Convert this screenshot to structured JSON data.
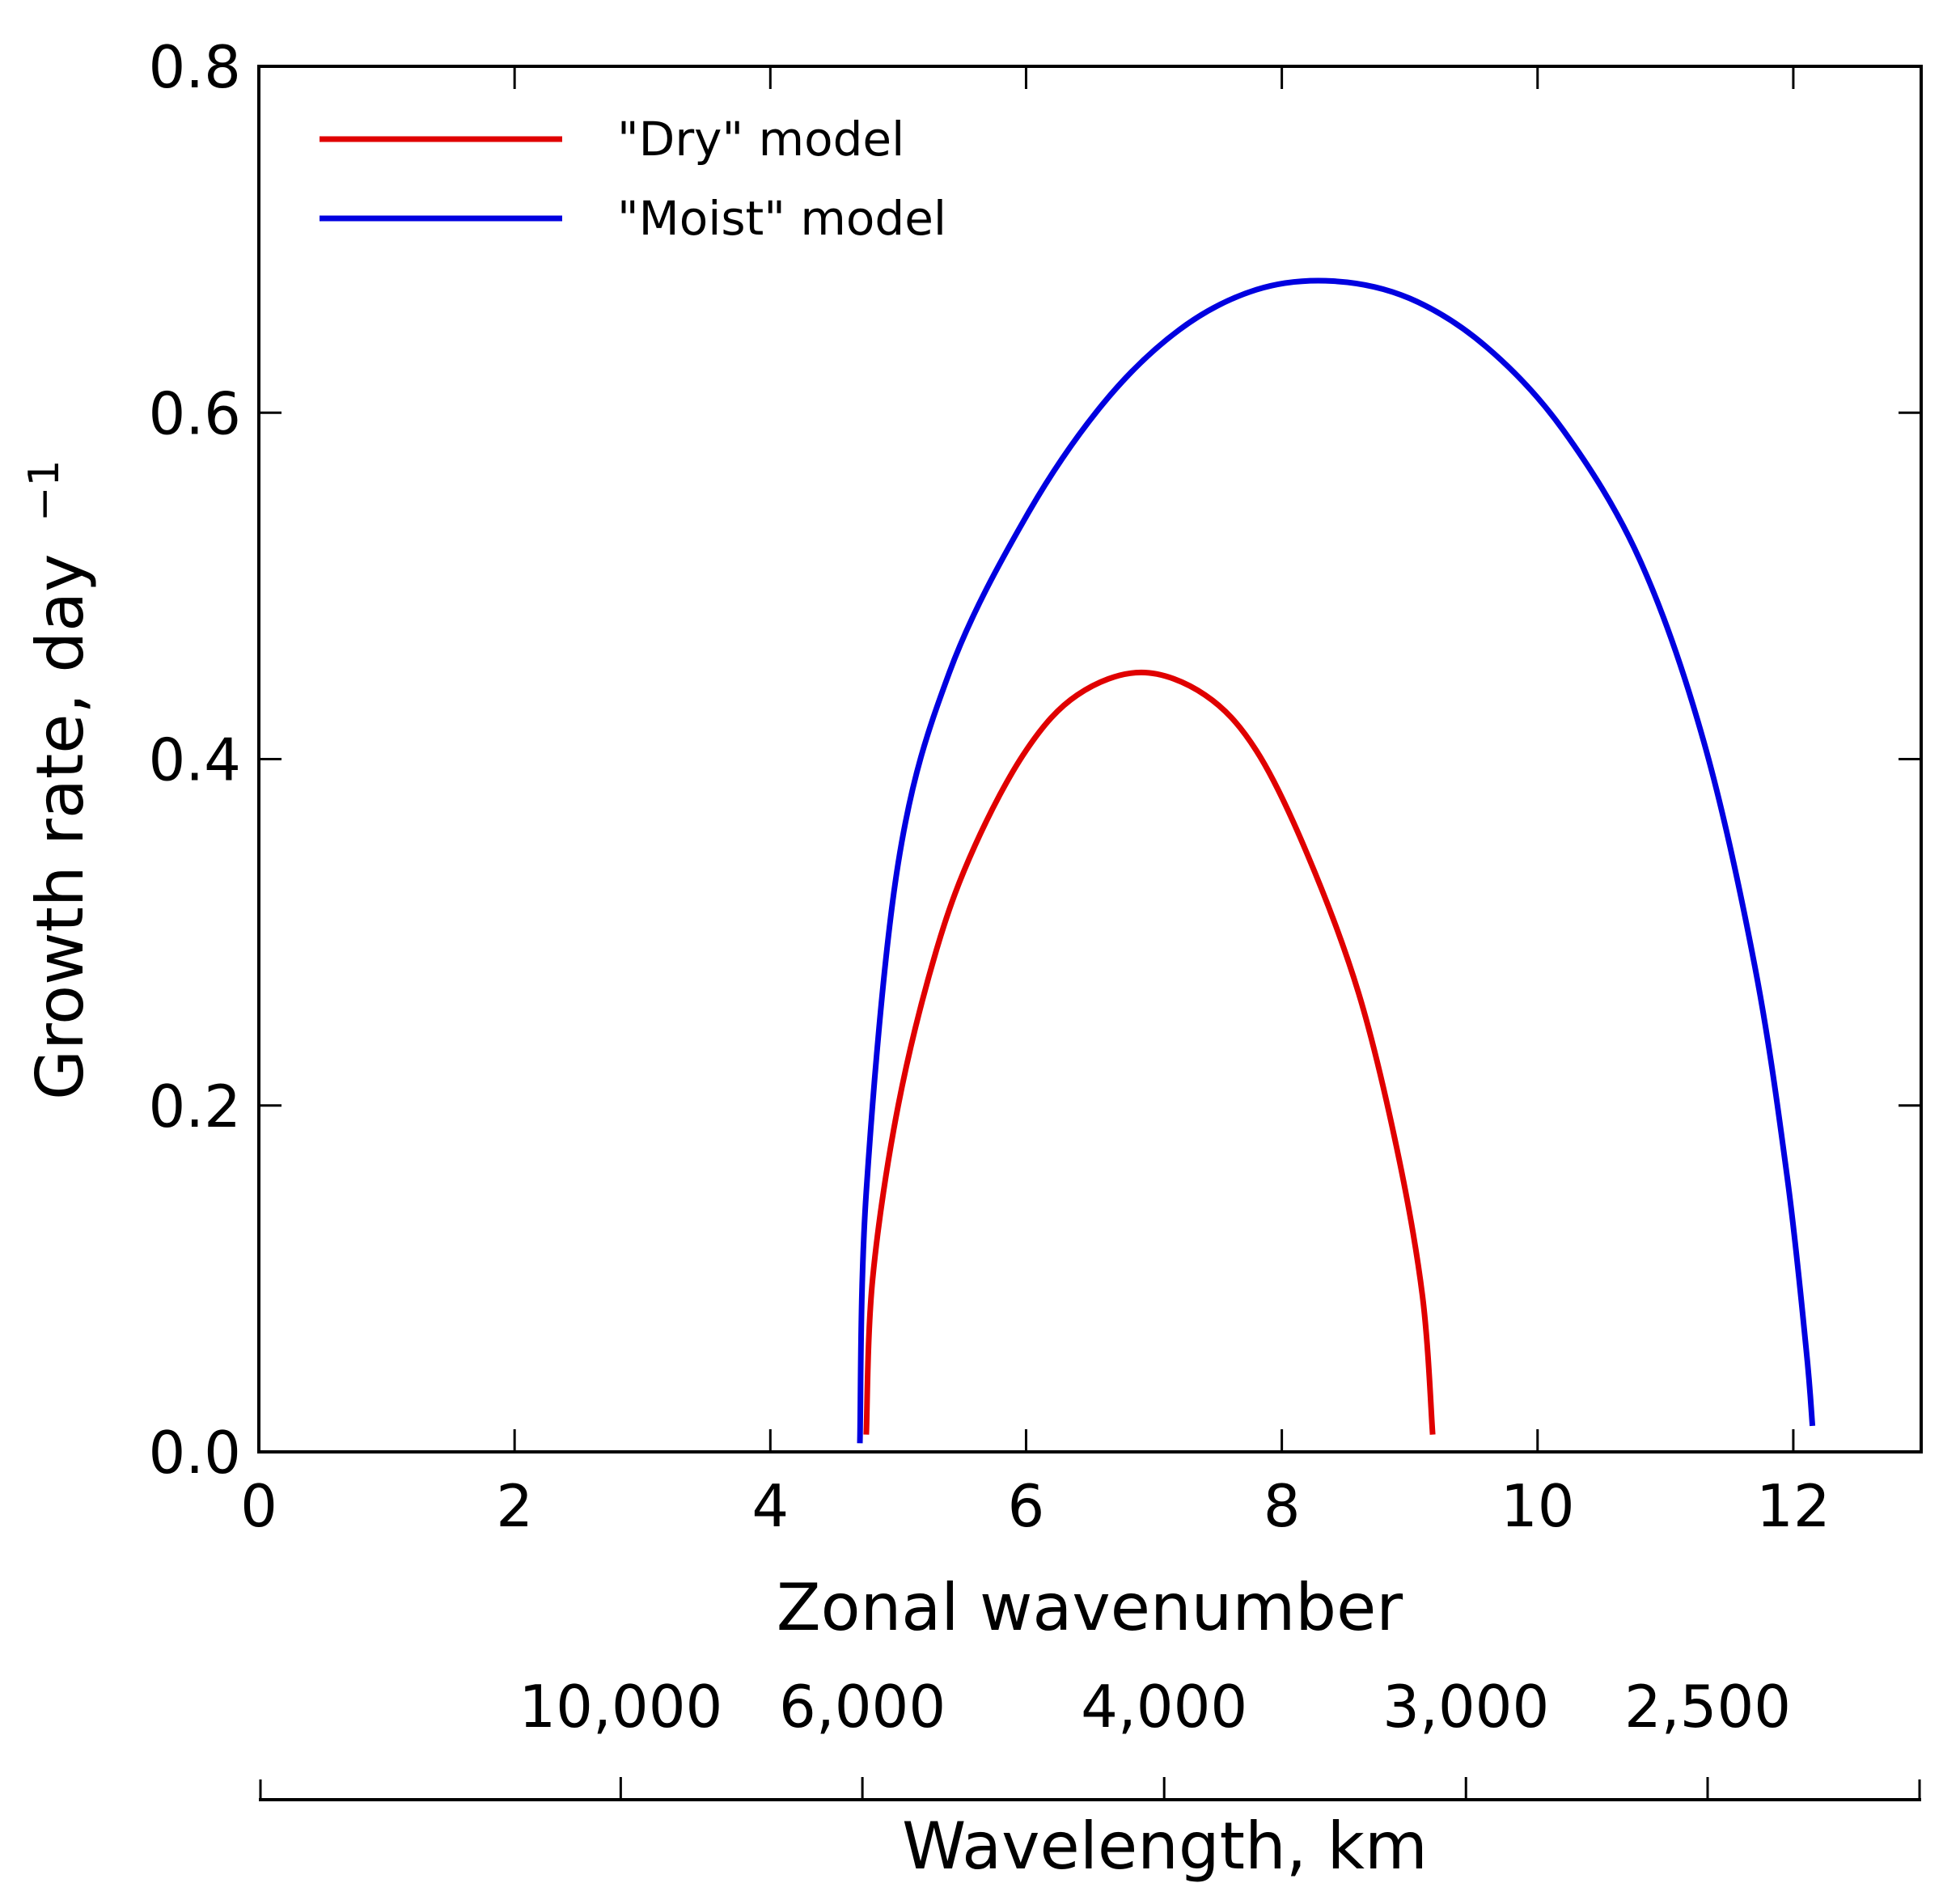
{
  "chart_data": {
    "type": "line",
    "title": "",
    "xlabel": "Zonal wavenumber",
    "ylabel": "Growth rate, day",
    "ylabel_superscript": "−1",
    "xlim": [
      0,
      13
    ],
    "ylim": [
      0,
      0.8
    ],
    "x_ticks": [
      {
        "value": 0,
        "label": "0"
      },
      {
        "value": 2,
        "label": "2"
      },
      {
        "value": 4,
        "label": "4"
      },
      {
        "value": 6,
        "label": "6"
      },
      {
        "value": 8,
        "label": "8"
      },
      {
        "value": 10,
        "label": "10"
      },
      {
        "value": 12,
        "label": "12"
      }
    ],
    "y_ticks": [
      {
        "value": 0.0,
        "label": "0.0"
      },
      {
        "value": 0.2,
        "label": "0.2"
      },
      {
        "value": 0.4,
        "label": "0.4"
      },
      {
        "value": 0.6,
        "label": "0.6"
      },
      {
        "value": 0.8,
        "label": "0.8"
      }
    ],
    "legend_position": "top-left",
    "series": [
      {
        "name": "\"Dry\" model",
        "color": "#e00000",
        "x": [
          4.75,
          4.8,
          5.0,
          5.3,
          5.6,
          6.0,
          6.4,
          6.9,
          7.4,
          7.8,
          8.2,
          8.6,
          8.9,
          9.1,
          9.18
        ],
        "y": [
          0.01,
          0.1,
          0.2,
          0.29,
          0.35,
          0.405,
          0.437,
          0.45,
          0.437,
          0.405,
          0.345,
          0.265,
          0.175,
          0.09,
          0.01
        ]
      },
      {
        "name": "\"Moist\" model",
        "color": "#0000e0",
        "x": [
          4.7,
          4.75,
          5.0,
          5.4,
          6.0,
          6.6,
          7.2,
          7.8,
          8.4,
          9.0,
          9.6,
          10.2,
          10.8,
          11.3,
          11.7,
          11.95,
          12.1,
          12.15
        ],
        "y": [
          0.005,
          0.15,
          0.34,
          0.45,
          0.54,
          0.605,
          0.648,
          0.671,
          0.676,
          0.666,
          0.638,
          0.59,
          0.515,
          0.41,
          0.28,
          0.16,
          0.06,
          0.015
        ]
      }
    ],
    "secondary_axis": {
      "label": "Wavelength, km",
      "ticks": [
        {
          "wavenumber": 2.83,
          "label": "10,000"
        },
        {
          "wavenumber": 4.72,
          "label": "6,000"
        },
        {
          "wavenumber": 7.08,
          "label": "4,000"
        },
        {
          "wavenumber": 9.44,
          "label": "3,000"
        },
        {
          "wavenumber": 11.33,
          "label": "2,500"
        }
      ]
    }
  }
}
